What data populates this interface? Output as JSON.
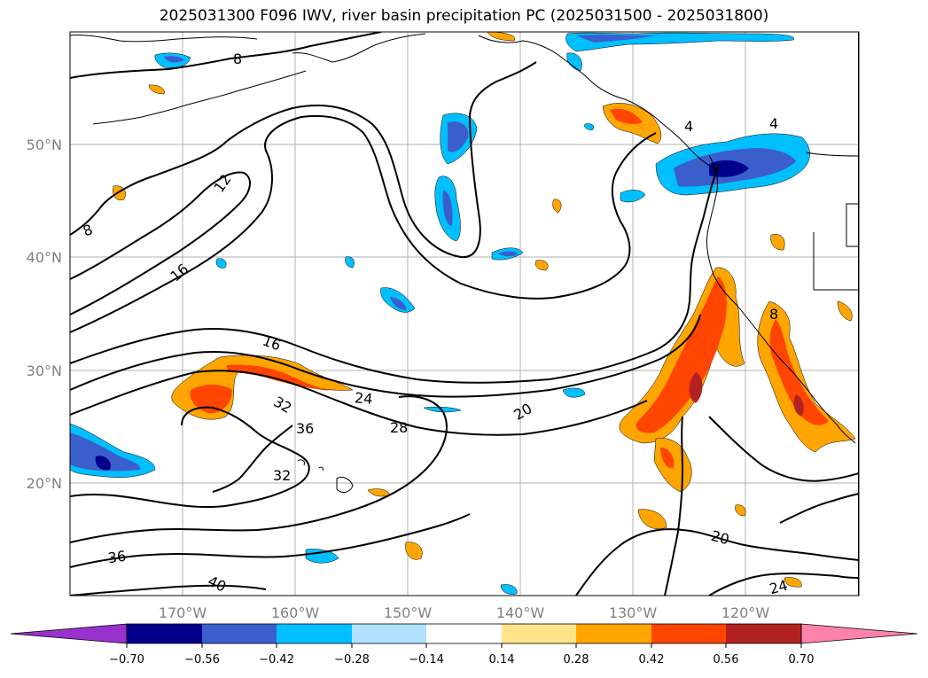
{
  "title": "2025031300 F096 IWV, river basin precipitation PC (2025031500 - 2025031800)",
  "map": {
    "lat_labels": [
      "50°N",
      "40°N",
      "30°N",
      "20°N"
    ],
    "lon_labels": [
      "170°W",
      "160°W",
      "150°W",
      "140°W",
      "130°W",
      "120°W"
    ],
    "contour_labels": [
      "8",
      "8",
      "12",
      "16",
      "16",
      "24",
      "28",
      "32",
      "36",
      "32",
      "36",
      "40",
      "20",
      "20",
      "24",
      "4",
      "4",
      "8"
    ]
  },
  "colorbar": {
    "colors": [
      "#9932cc",
      "#00008b",
      "#3a5fcd",
      "#00bfff",
      "#b0e2ff",
      "#ffffff",
      "#fee38b",
      "#ffa500",
      "#ff4500",
      "#b22222",
      "#ff82ab"
    ],
    "tick_labels": [
      "−0.70",
      "−0.56",
      "−0.42",
      "−0.28",
      "−0.14",
      "0.14",
      "0.28",
      "0.42",
      "0.56",
      "0.70"
    ]
  }
}
